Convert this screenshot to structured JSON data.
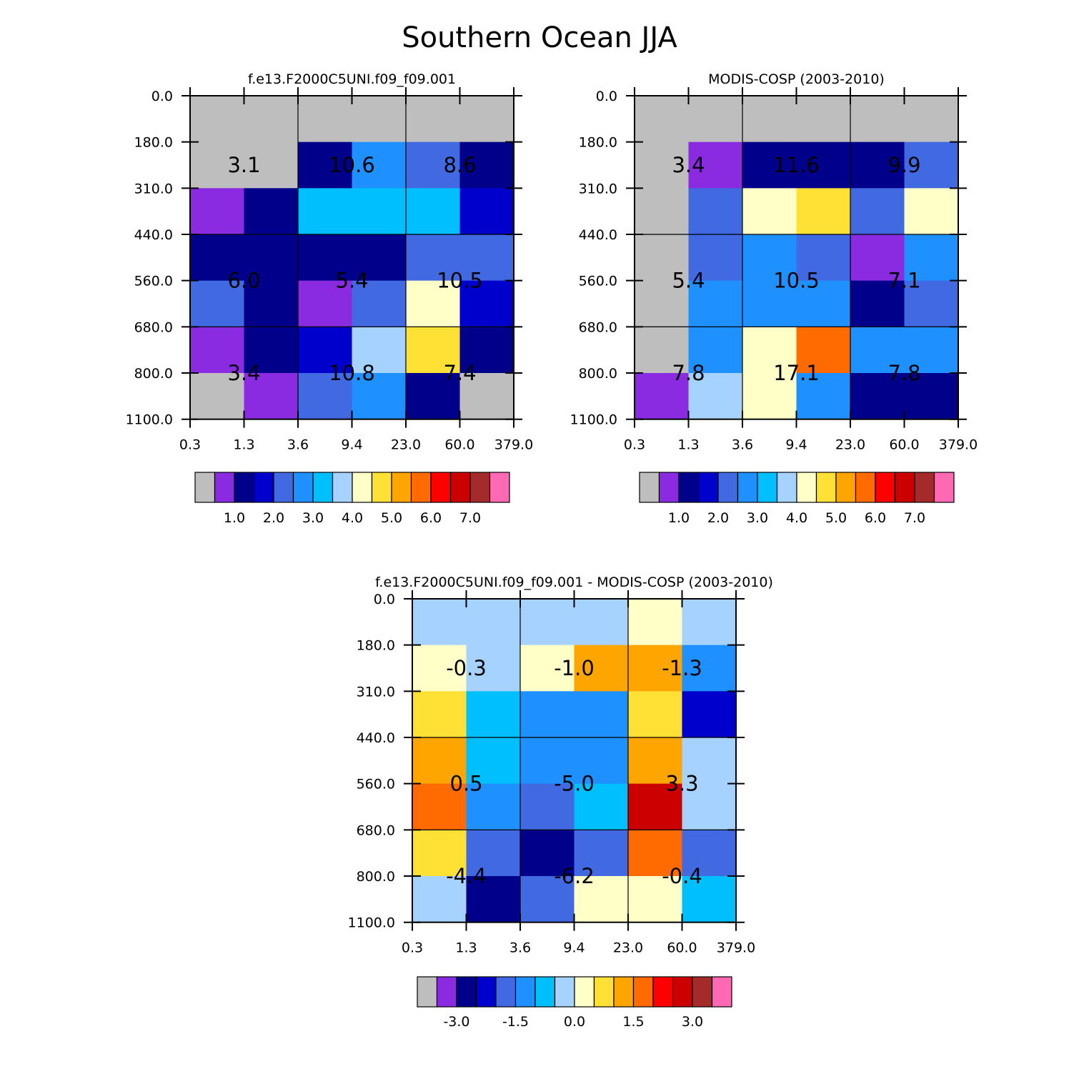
{
  "page_title": "Southern Ocean JJA",
  "palette_main": [
    "#bebebe",
    "#8a2be2",
    "#00008b",
    "#0000cd",
    "#4169e1",
    "#1e90ff",
    "#00bfff",
    "#a6d2ff",
    "#ffffc8",
    "#ffe135",
    "#ffa500",
    "#ff6b00",
    "#ff0000",
    "#cd0000",
    "#a52a2a",
    "#ff69b4"
  ],
  "palette_diff": [
    "#bebebe",
    "#8a2be2",
    "#00008b",
    "#0000cd",
    "#4169e1",
    "#1e90ff",
    "#00bfff",
    "#a6d2ff",
    "#ffffc8",
    "#ffe135",
    "#ffa500",
    "#ff6b00",
    "#ff0000",
    "#cd0000",
    "#a52a2a",
    "#ff69b4"
  ],
  "chart_data": [
    {
      "type": "heatmap",
      "title": "f.e13.F2000C5UNI.f09_f09.001",
      "x_ticks": [
        "0.3",
        "1.3",
        "3.6",
        "9.4",
        "23.0",
        "60.0",
        "379.0"
      ],
      "y_ticks": [
        "0.0",
        "180.0",
        "310.0",
        "440.0",
        "560.0",
        "680.0",
        "800.0",
        "1100.0"
      ],
      "cell_colors": [
        [
          0,
          0,
          0,
          0,
          0,
          0
        ],
        [
          0,
          0,
          2,
          5,
          4,
          2
        ],
        [
          1,
          2,
          6,
          6,
          6,
          3
        ],
        [
          2,
          2,
          2,
          2,
          4,
          4
        ],
        [
          4,
          2,
          1,
          4,
          8,
          3
        ],
        [
          1,
          2,
          3,
          7,
          9,
          2
        ],
        [
          0,
          1,
          4,
          5,
          2,
          0
        ]
      ],
      "group_labels": [
        [
          "3.1",
          "10.6",
          "8.6"
        ],
        [
          "6.0",
          "5.4",
          "10.5"
        ],
        [
          "3.4",
          "10.8",
          "7.4"
        ]
      ],
      "colorbar_labels": [
        "1.0",
        "2.0",
        "3.0",
        "4.0",
        "5.0",
        "6.0",
        "7.0"
      ]
    },
    {
      "type": "heatmap",
      "title": "MODIS-COSP (2003-2010)",
      "x_ticks": [
        "0.3",
        "1.3",
        "3.6",
        "9.4",
        "23.0",
        "60.0",
        "379.0"
      ],
      "y_ticks": [
        "0.0",
        "180.0",
        "310.0",
        "440.0",
        "560.0",
        "680.0",
        "800.0",
        "1100.0"
      ],
      "cell_colors": [
        [
          0,
          0,
          0,
          0,
          0,
          0
        ],
        [
          0,
          1,
          2,
          2,
          2,
          4
        ],
        [
          0,
          4,
          8,
          9,
          4,
          8
        ],
        [
          0,
          4,
          5,
          4,
          1,
          5
        ],
        [
          0,
          5,
          5,
          5,
          2,
          4
        ],
        [
          0,
          5,
          8,
          11,
          5,
          5
        ],
        [
          1,
          7,
          8,
          5,
          2,
          2
        ]
      ],
      "group_labels": [
        [
          "3.4",
          "11.6",
          "9.9"
        ],
        [
          "5.4",
          "10.5",
          "7.1"
        ],
        [
          "7.8",
          "17.1",
          "7.8"
        ]
      ],
      "colorbar_labels": [
        "1.0",
        "2.0",
        "3.0",
        "4.0",
        "5.0",
        "6.0",
        "7.0"
      ]
    },
    {
      "type": "heatmap",
      "title": "f.e13.F2000C5UNI.f09_f09.001 - MODIS-COSP (2003-2010)",
      "x_ticks": [
        "0.3",
        "1.3",
        "3.6",
        "9.4",
        "23.0",
        "60.0",
        "379.0"
      ],
      "y_ticks": [
        "0.0",
        "180.0",
        "310.0",
        "440.0",
        "560.0",
        "680.0",
        "800.0",
        "1100.0"
      ],
      "cell_colors": [
        [
          7,
          7,
          7,
          7,
          8,
          7
        ],
        [
          8,
          7,
          8,
          10,
          10,
          5
        ],
        [
          9,
          6,
          5,
          5,
          9,
          3
        ],
        [
          10,
          6,
          5,
          5,
          10,
          7
        ],
        [
          11,
          5,
          4,
          6,
          13,
          7
        ],
        [
          9,
          4,
          2,
          4,
          11,
          4
        ],
        [
          7,
          2,
          4,
          8,
          8,
          6
        ]
      ],
      "group_labels": [
        [
          "-0.3",
          "-1.0",
          "-1.3"
        ],
        [
          "0.5",
          "-5.0",
          "3.3"
        ],
        [
          "-4.4",
          "-6.2",
          "-0.4"
        ]
      ],
      "colorbar_labels": [
        "-3.0",
        "-1.5",
        "0.0",
        "1.5",
        "3.0"
      ]
    }
  ]
}
